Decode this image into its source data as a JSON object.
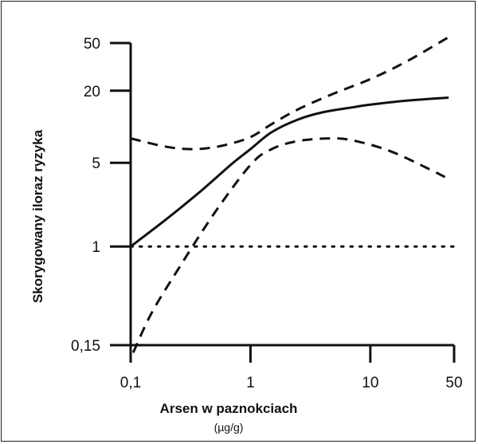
{
  "chart_data": {
    "type": "line",
    "xlabel": "Arsen w paznokciach",
    "xunit": "(µg/g)",
    "ylabel": "Skorygowany iloraz ryzyka",
    "x_scale": "log",
    "y_scale": "log",
    "xlim": [
      0.1,
      50
    ],
    "ylim": [
      0.15,
      50
    ],
    "x_ticks": [
      0.1,
      1,
      10,
      50
    ],
    "x_tick_labels": [
      "0,1",
      "1",
      "10",
      "50"
    ],
    "y_ticks": [
      0.15,
      1,
      5,
      20,
      50
    ],
    "y_tick_labels": [
      "0,15",
      "1",
      "5",
      "20",
      "50"
    ],
    "grid": false,
    "series": [
      {
        "style": "solid",
        "x": [
          0.1,
          0.2,
          0.4,
          0.7,
          1.0,
          1.5,
          2.5,
          4,
          7,
          10,
          20,
          45
        ],
        "y": [
          1.0,
          1.7,
          3.0,
          4.9,
          6.5,
          9.0,
          11.5,
          13.2,
          14.5,
          15.3,
          16.5,
          17.5
        ]
      },
      {
        "style": "dashed",
        "x": [
          0.1,
          0.2,
          0.35,
          0.6,
          1.0,
          1.5,
          2.5,
          5,
          10,
          20,
          45
        ],
        "y": [
          8.0,
          6.8,
          6.5,
          7.0,
          8.2,
          10.5,
          14.0,
          19.0,
          25.0,
          35.0,
          56.0
        ]
      },
      {
        "style": "dashed",
        "x": [
          0.105,
          0.15,
          0.25,
          0.5,
          1.0,
          1.5,
          2.5,
          5,
          8,
          15,
          30,
          42
        ],
        "y": [
          0.13,
          0.28,
          0.65,
          1.9,
          4.8,
          6.5,
          7.6,
          8.0,
          7.5,
          6.2,
          4.5,
          3.8
        ]
      },
      {
        "style": "dotted",
        "x": [
          0.1,
          50
        ],
        "y": [
          1,
          1
        ]
      }
    ]
  }
}
